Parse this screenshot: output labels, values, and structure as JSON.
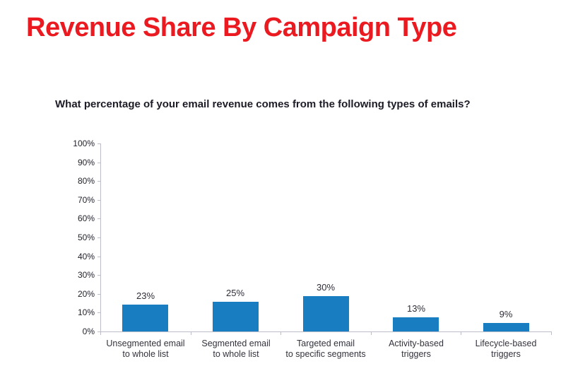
{
  "title": "Revenue Share By Campaign Type",
  "question": "What percentage of your email revenue comes from the following types of emails?",
  "colors": {
    "title_red": "#ea1a20",
    "bar_blue": "#187dc1",
    "axis_line": "#bcbdc9",
    "text_dark": "#23232d"
  },
  "chart_data": {
    "type": "bar",
    "title": "Revenue Share By Campaign Type",
    "subtitle": "What percentage of your email revenue comes from the following types of emails?",
    "categories": [
      "Unsegmented email to whole list",
      "Segmented email to whole list",
      "Targeted email to specific segments",
      "Activity-based triggers",
      "Lifecycle-based triggers"
    ],
    "category_label_lines": [
      [
        "Unsegmented email",
        "to whole list"
      ],
      [
        "Segmented email",
        "to whole list"
      ],
      [
        "Targeted email",
        "to specific segments"
      ],
      [
        "Activity-based",
        "triggers"
      ],
      [
        "Lifecycle-based",
        "triggers"
      ]
    ],
    "values": [
      23,
      25,
      30,
      13,
      9
    ],
    "value_labels": [
      "23%",
      "25%",
      "30%",
      "13%",
      "9%"
    ],
    "rendered_bar_height_pct": [
      14.3,
      15.8,
      18.9,
      7.5,
      4.5
    ],
    "xlabel": "",
    "ylabel": "",
    "ylim": [
      0,
      100
    ],
    "y_ticks": [
      "100%",
      "90%",
      "80%",
      "70%",
      "60%",
      "50%",
      "40%",
      "30%",
      "20%",
      "10%",
      "0%"
    ],
    "grid": false,
    "legend": false,
    "bar_color": "#187dc1"
  }
}
